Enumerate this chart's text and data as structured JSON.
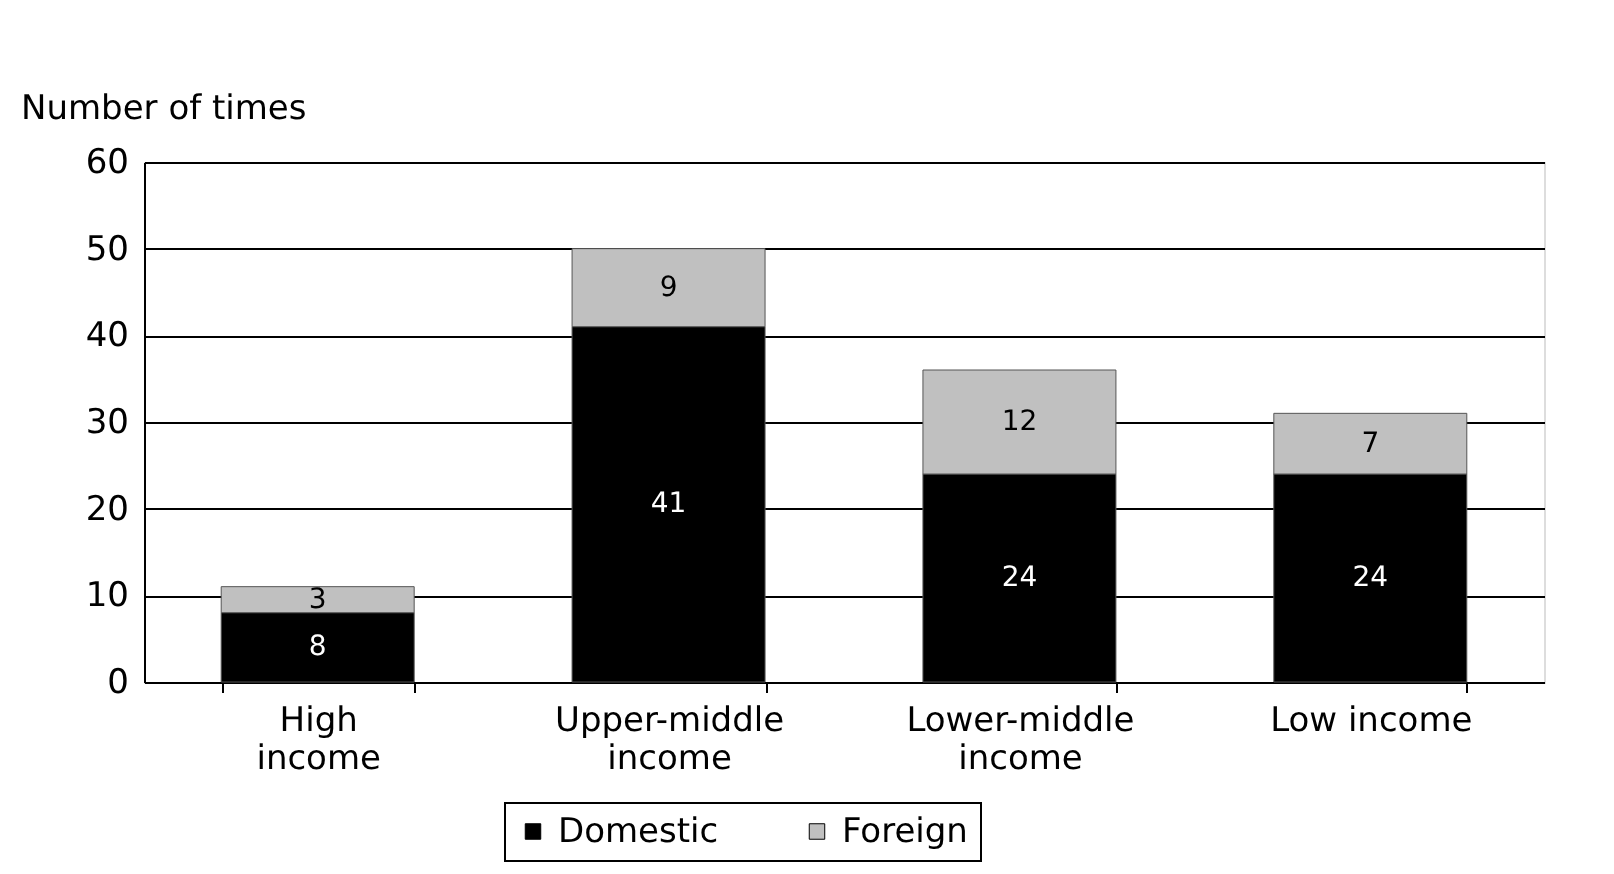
{
  "chart_data": {
    "type": "bar",
    "stacked": true,
    "ylabel": "Number of times",
    "categories": [
      "High income",
      "Upper-middle income",
      "Lower-middle income",
      "Low income"
    ],
    "series": [
      {
        "name": "Domestic",
        "color": "#000000",
        "values": [
          8,
          41,
          24,
          24
        ]
      },
      {
        "name": "Foreign",
        "color": "#c0c0c0",
        "values": [
          3,
          9,
          12,
          7
        ]
      }
    ],
    "ylim": [
      0,
      60
    ],
    "yticks": [
      0,
      10,
      20,
      30,
      40,
      50,
      60
    ],
    "grid": "y",
    "legend": "bottom",
    "data_labels": true
  }
}
